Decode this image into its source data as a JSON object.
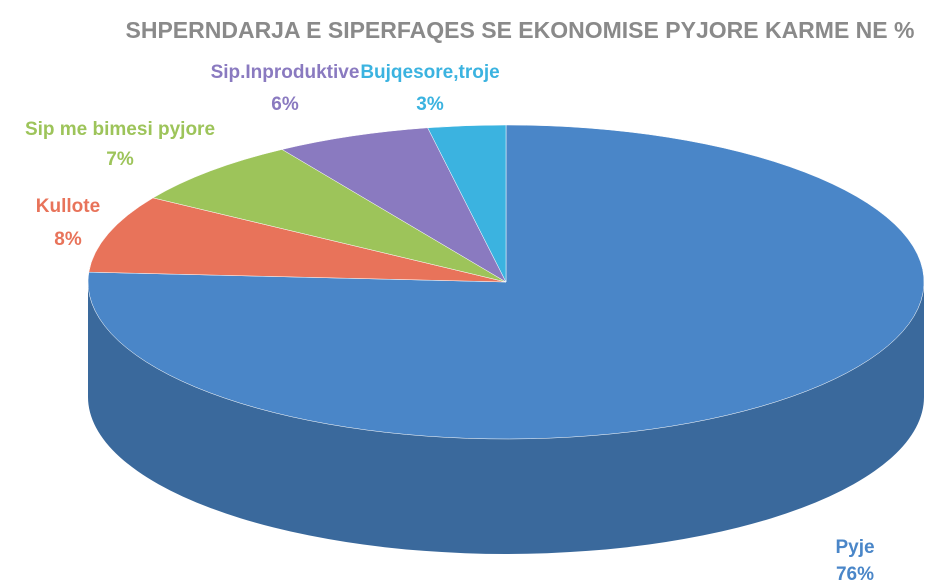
{
  "chart_data": {
    "type": "pie",
    "title": "SHPERNDARJA E SIPERFAQES SE EKONOMISE PYJORE KARME NE %",
    "categories": [
      "Pyje",
      "Kullote",
      "Sip me bimesi pyjore",
      "Sip.Inproduktive",
      "Bujqesore,troje"
    ],
    "values": [
      76,
      8,
      7,
      6,
      3
    ],
    "value_labels": [
      "76%",
      "8%",
      "7%",
      "6%",
      "3%"
    ],
    "colors": [
      "#4a86c8",
      "#e8735a",
      "#9dc45a",
      "#8a7ac0",
      "#3bb3e0"
    ]
  }
}
